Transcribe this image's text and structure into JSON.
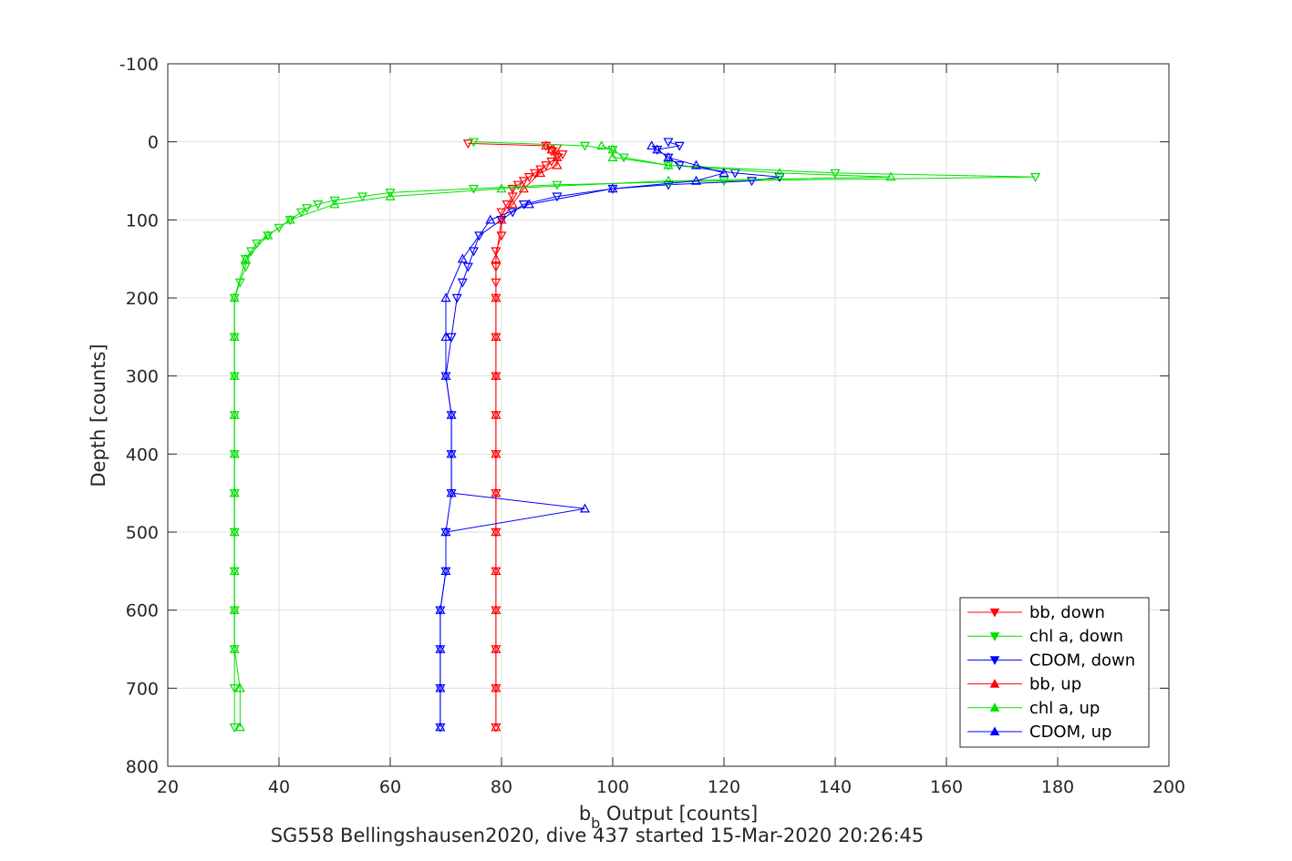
{
  "chart_data": {
    "type": "scatter",
    "xlabel_main": "b",
    "xlabel_sub": "b",
    "xlabel_rest": " Output [counts]",
    "ylabel": "Depth [counts]",
    "footer": "SG558 Bellingshausen2020, dive 437 started 15-Mar-2020 20:26:45",
    "xlim": [
      20,
      200
    ],
    "ylim": [
      -100,
      800
    ],
    "y_reversed": true,
    "grid": true,
    "legend_position": "bottom-right",
    "xticks": [
      "20",
      "40",
      "60",
      "80",
      "100",
      "120",
      "140",
      "160",
      "180",
      "200"
    ],
    "yticks": [
      "-100",
      "0",
      "100",
      "200",
      "300",
      "400",
      "500",
      "600",
      "700",
      "800"
    ],
    "series": [
      {
        "name": "bb, down",
        "color": "#ff0000",
        "marker": "triangle-down",
        "depth": [
          2,
          5,
          8,
          12,
          16,
          20,
          25,
          30,
          35,
          40,
          45,
          50,
          55,
          60,
          70,
          80,
          90,
          100,
          120,
          140,
          160,
          180,
          200,
          250,
          300,
          350,
          400,
          450,
          500,
          550,
          600,
          650,
          700,
          750
        ],
        "x": [
          74,
          88,
          90,
          89,
          91,
          90,
          89,
          88,
          87,
          86,
          85,
          84,
          83,
          82,
          82,
          81,
          80,
          80,
          80,
          79,
          79,
          79,
          79,
          79,
          79,
          79,
          79,
          79,
          79,
          79,
          79,
          79,
          79,
          79
        ]
      },
      {
        "name": "chl a, down",
        "color": "#00e000",
        "marker": "triangle-down",
        "depth": [
          0,
          5,
          10,
          20,
          30,
          40,
          45,
          50,
          55,
          60,
          65,
          70,
          75,
          80,
          85,
          90,
          100,
          110,
          120,
          130,
          140,
          150,
          160,
          180,
          200,
          250,
          300,
          350,
          400,
          450,
          500,
          550,
          600,
          650,
          700,
          750
        ],
        "x": [
          75,
          95,
          100,
          102,
          110,
          140,
          176,
          120,
          90,
          75,
          60,
          55,
          50,
          47,
          45,
          44,
          42,
          40,
          38,
          36,
          35,
          34,
          34,
          33,
          32,
          32,
          32,
          32,
          32,
          32,
          32,
          32,
          32,
          32,
          32,
          32
        ]
      },
      {
        "name": "CDOM, down",
        "color": "#0000ff",
        "marker": "triangle-down",
        "depth": [
          0,
          5,
          10,
          20,
          30,
          40,
          45,
          50,
          55,
          60,
          70,
          80,
          90,
          100,
          120,
          140,
          160,
          180,
          200,
          250,
          300,
          350,
          400,
          450,
          500,
          550,
          600,
          650,
          700,
          750
        ],
        "x": [
          110,
          112,
          108,
          110,
          112,
          122,
          130,
          125,
          110,
          100,
          90,
          84,
          82,
          80,
          76,
          75,
          74,
          73,
          72,
          71,
          70,
          71,
          71,
          71,
          70,
          70,
          69,
          69,
          69,
          69
        ]
      },
      {
        "name": "bb, up",
        "color": "#ff0000",
        "marker": "triangle-up",
        "depth": [
          750,
          700,
          650,
          600,
          550,
          500,
          450,
          400,
          350,
          300,
          250,
          200,
          150,
          100,
          80,
          60,
          40,
          30,
          20,
          10,
          5
        ],
        "x": [
          79,
          79,
          79,
          79,
          79,
          79,
          79,
          79,
          79,
          79,
          79,
          79,
          79,
          80,
          82,
          84,
          87,
          90,
          90,
          89,
          88
        ]
      },
      {
        "name": "chl a, up",
        "color": "#00e000",
        "marker": "triangle-up",
        "depth": [
          750,
          700,
          650,
          600,
          550,
          500,
          450,
          400,
          350,
          300,
          250,
          200,
          150,
          120,
          100,
          80,
          70,
          60,
          50,
          45,
          40,
          30,
          20,
          10,
          5
        ],
        "x": [
          33,
          33,
          32,
          32,
          32,
          32,
          32,
          32,
          32,
          32,
          32,
          32,
          34,
          38,
          42,
          50,
          60,
          80,
          110,
          150,
          130,
          110,
          100,
          100,
          98
        ]
      },
      {
        "name": "CDOM, up",
        "color": "#0000ff",
        "marker": "triangle-up",
        "depth": [
          750,
          700,
          650,
          600,
          550,
          500,
          470,
          450,
          400,
          350,
          300,
          250,
          200,
          150,
          100,
          80,
          60,
          50,
          40,
          30,
          20,
          10,
          5
        ],
        "x": [
          69,
          69,
          69,
          69,
          70,
          70,
          95,
          71,
          71,
          71,
          70,
          70,
          70,
          73,
          78,
          85,
          100,
          115,
          120,
          115,
          110,
          108,
          107
        ]
      }
    ]
  }
}
